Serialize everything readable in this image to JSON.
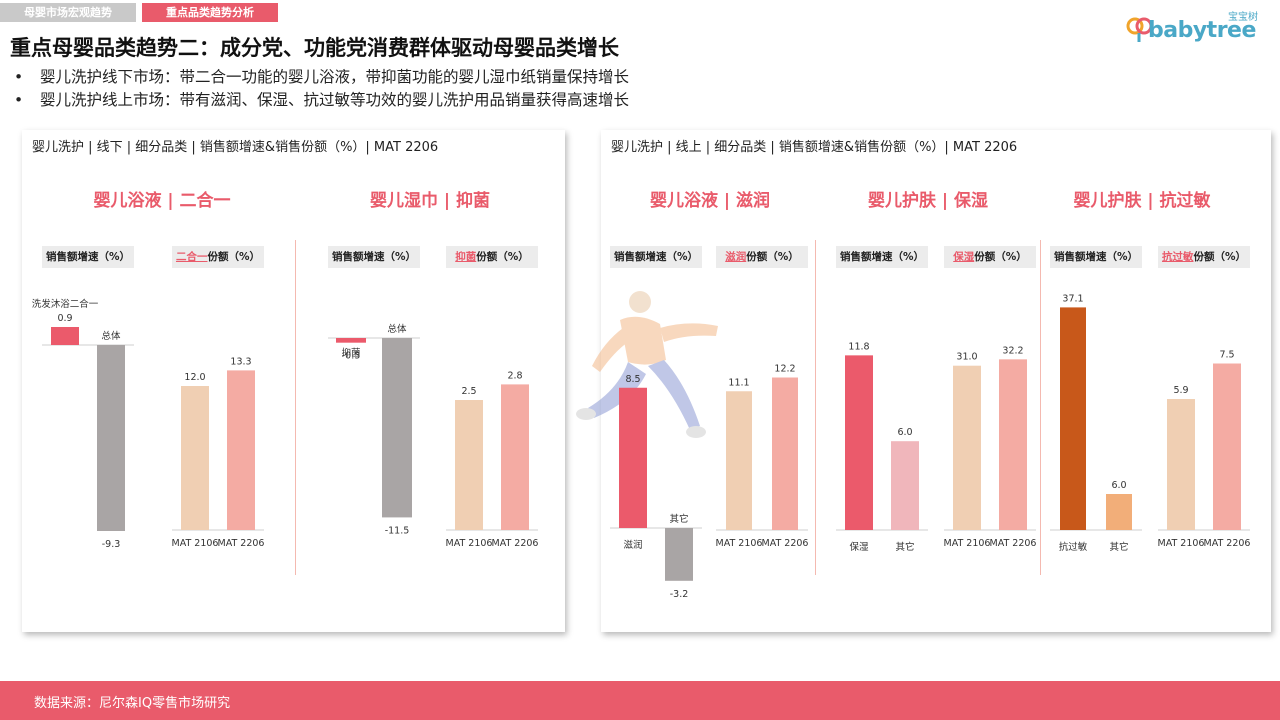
{
  "tabs": [
    "母婴市场宏观趋势",
    "重点品类趋势分析"
  ],
  "logo": {
    "text": "babytree",
    "cn": "宝宝树"
  },
  "title": "重点母婴品类趋势二：成分党、功能党消费群体驱动母婴品类增长",
  "bullets": [
    "婴儿洗护线下市场：带二合一功能的婴儿浴液，带抑菌功能的婴儿湿巾纸销量保持增长",
    "婴儿洗护线上市场：带有滋润、保湿、抗过敏等功效的婴儿洗护用品销量获得高速增长"
  ],
  "footer": "数据来源：尼尔森IQ零售市场研究",
  "colors": {
    "accent": "#e95b6b",
    "bar_red": "#eb5a6b",
    "bar_gray": "#a9a5a5",
    "bar_peach": "#f0cfb3",
    "bar_pink": "#f4aba3",
    "bar_pink_light": "#f0b6bb",
    "bar_orange_dark": "#c8581a",
    "bar_orange_light": "#f2ae79"
  },
  "chart_data": [
    {
      "type": "bar",
      "panel_title": "婴儿洗护 | 线下 | 细分品类 | 销售额增速&销售份额（%）| MAT 2206",
      "title": "婴儿浴液 | 二合一",
      "groups": [
        {
          "header": "销售额增速（%）",
          "categories": [
            "洗发沐浴二合一",
            "总体"
          ],
          "values": [
            0.9,
            -9.3
          ],
          "labels": [
            "0.9",
            "-9.3"
          ],
          "colors": [
            "#eb5a6b",
            "#a9a5a5"
          ]
        },
        {
          "header_hl": "二合一",
          "header": "份额（%）",
          "categories": [
            "MAT 2106",
            "MAT 2206"
          ],
          "values": [
            12.0,
            13.3
          ],
          "labels": [
            "12.0",
            "13.3"
          ],
          "colors": [
            "#f0cfb3",
            "#f4aba3"
          ]
        }
      ]
    },
    {
      "type": "bar",
      "title": "婴儿湿巾 | 抑菌",
      "groups": [
        {
          "header": "销售额增速（%）",
          "categories": [
            "抑菌",
            "总体"
          ],
          "values": [
            -0.3,
            -11.5
          ],
          "labels": [
            "-0.3",
            "-11.5"
          ],
          "colors": [
            "#eb5a6b",
            "#a9a5a5"
          ]
        },
        {
          "header_hl": "抑菌",
          "header": "份额（%）",
          "categories": [
            "MAT 2106",
            "MAT 2206"
          ],
          "values": [
            2.5,
            2.8
          ],
          "labels": [
            "2.5",
            "2.8"
          ],
          "colors": [
            "#f0cfb3",
            "#f4aba3"
          ]
        }
      ]
    },
    {
      "type": "bar",
      "panel_title": "婴儿洗护 | 线上 | 细分品类 | 销售额增速&销售份额（%）| MAT 2206",
      "title": "婴儿浴液 | 滋润",
      "groups": [
        {
          "header": "销售额增速（%）",
          "categories": [
            "滋润",
            "其它"
          ],
          "values": [
            8.5,
            -3.2
          ],
          "labels": [
            "8.5",
            "-3.2"
          ],
          "colors": [
            "#eb5a6b",
            "#a9a5a5"
          ]
        },
        {
          "header_hl": "滋润",
          "header": "份额（%）",
          "categories": [
            "MAT 2106",
            "MAT 2206"
          ],
          "values": [
            11.1,
            12.2
          ],
          "labels": [
            "11.1",
            "12.2"
          ],
          "colors": [
            "#f0cfb3",
            "#f4aba3"
          ]
        }
      ]
    },
    {
      "type": "bar",
      "title": "婴儿护肤 | 保湿",
      "groups": [
        {
          "header": "销售额增速（%）",
          "categories": [
            "保湿",
            "其它"
          ],
          "values": [
            11.8,
            6.0
          ],
          "labels": [
            "11.8",
            "6.0"
          ],
          "colors": [
            "#eb5a6b",
            "#f0b6bb"
          ]
        },
        {
          "header_hl": "保湿",
          "header": "份额（%）",
          "categories": [
            "MAT 2106",
            "MAT 2206"
          ],
          "values": [
            31.0,
            32.2
          ],
          "labels": [
            "31.0",
            "32.2"
          ],
          "colors": [
            "#f0cfb3",
            "#f4aba3"
          ]
        }
      ]
    },
    {
      "type": "bar",
      "title": "婴儿护肤 | 抗过敏",
      "groups": [
        {
          "header": "销售额增速（%）",
          "categories": [
            "抗过敏",
            "其它"
          ],
          "values": [
            37.1,
            6.0
          ],
          "labels": [
            "37.1",
            "6.0"
          ],
          "colors": [
            "#c8581a",
            "#f2ae79"
          ]
        },
        {
          "header_hl": "抗过敏",
          "header": "份额（%）",
          "categories": [
            "MAT 2106",
            "MAT 2206"
          ],
          "values": [
            5.9,
            7.5
          ],
          "labels": [
            "5.9",
            "7.5"
          ],
          "colors": [
            "#f0cfb3",
            "#f4aba3"
          ]
        }
      ]
    }
  ]
}
